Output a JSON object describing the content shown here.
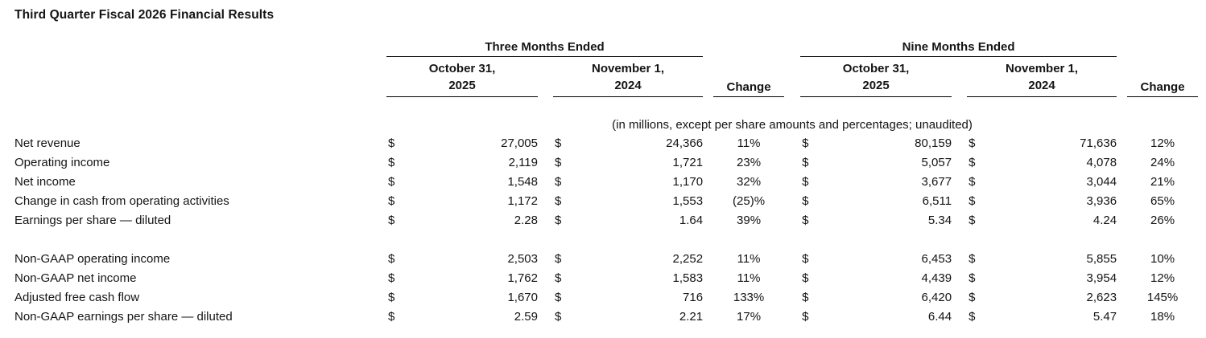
{
  "title": "Third Quarter Fiscal 2026 Financial Results",
  "table": {
    "currency_symbol": "$",
    "group_headers": {
      "three_months": "Three Months Ended",
      "nine_months": "Nine Months Ended"
    },
    "period_headers": {
      "fy2025_line1": "October 31,",
      "fy2025_line2": "2025",
      "fy2024_line1": "November 1,",
      "fy2024_line2": "2024",
      "change": "Change"
    },
    "note": "(in millions, except per share amounts and percentages; unaudited)",
    "sections": [
      {
        "name": "gaap-measures",
        "rows": [
          {
            "label": "Net revenue",
            "tm_2025": "27,005",
            "tm_2024": "24,366",
            "tm_change": "11%",
            "nm_2025": "80,159",
            "nm_2024": "71,636",
            "nm_change": "12%"
          },
          {
            "label": "Operating income",
            "tm_2025": "2,119",
            "tm_2024": "1,721",
            "tm_change": "23%",
            "nm_2025": "5,057",
            "nm_2024": "4,078",
            "nm_change": "24%"
          },
          {
            "label": "Net income",
            "tm_2025": "1,548",
            "tm_2024": "1,170",
            "tm_change": "32%",
            "nm_2025": "3,677",
            "nm_2024": "3,044",
            "nm_change": "21%"
          },
          {
            "label": "Change in cash from operating activities",
            "tm_2025": "1,172",
            "tm_2024": "1,553",
            "tm_change": "(25)%",
            "nm_2025": "6,511",
            "nm_2024": "3,936",
            "nm_change": "65%"
          },
          {
            "label": "Earnings per share — diluted",
            "tm_2025": "2.28",
            "tm_2024": "1.64",
            "tm_change": "39%",
            "nm_2025": "5.34",
            "nm_2024": "4.24",
            "nm_change": "26%"
          }
        ]
      },
      {
        "name": "non-gaap-measures",
        "rows": [
          {
            "label": "Non-GAAP operating income",
            "tm_2025": "2,503",
            "tm_2024": "2,252",
            "tm_change": "11%",
            "nm_2025": "6,453",
            "nm_2024": "5,855",
            "nm_change": "10%"
          },
          {
            "label": "Non-GAAP net income",
            "tm_2025": "1,762",
            "tm_2024": "1,583",
            "tm_change": "11%",
            "nm_2025": "4,439",
            "nm_2024": "3,954",
            "nm_change": "12%"
          },
          {
            "label": "Adjusted free cash flow",
            "tm_2025": "1,670",
            "tm_2024": "716",
            "tm_change": "133%",
            "nm_2025": "6,420",
            "nm_2024": "2,623",
            "nm_change": "145%"
          },
          {
            "label": "Non-GAAP earnings per share — diluted",
            "tm_2025": "2.59",
            "tm_2024": "2.21",
            "tm_change": "17%",
            "nm_2025": "6.44",
            "nm_2024": "5.47",
            "nm_change": "18%"
          }
        ]
      }
    ]
  }
}
